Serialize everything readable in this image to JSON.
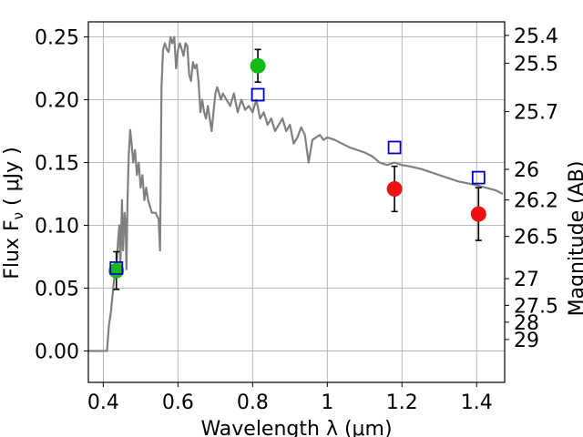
{
  "chart_data": {
    "type": "scatter",
    "xlabel": "Wavelength  λ (μm)",
    "ylabel": "Flux  F_ν  ( μJy )",
    "y2label": "Magnitude (AB)",
    "xlim": [
      0.36,
      1.475
    ],
    "ylim": [
      -0.025,
      0.262
    ],
    "grid": true,
    "x_ticks": [
      0.4,
      0.6,
      0.8,
      1.0,
      1.2,
      1.4
    ],
    "x_tick_labels": [
      "0.4",
      "0.6",
      "0.8",
      "1",
      "1.2",
      "1.4"
    ],
    "y_ticks": [
      0.0,
      0.05,
      0.1,
      0.15,
      0.2,
      0.25
    ],
    "y_tick_labels": [
      "0.00",
      "0.05",
      "0.10",
      "0.15",
      "0.20",
      "0.25"
    ],
    "y2_ticks": [
      25.4,
      25.5,
      25.7,
      26,
      26.2,
      26.5,
      27,
      27.5,
      28,
      29
    ],
    "y2_tick_labels": [
      "25.4",
      "25.5",
      "25.7",
      "26",
      "26.2",
      "26.5",
      "27",
      "27.5",
      "28",
      "29"
    ],
    "colors": {
      "model": "#808080",
      "green": "#11bb11",
      "red": "#ee1111",
      "square": "#0000cc",
      "errorbar": "#000000",
      "grid": "#b0b0b0"
    },
    "model_spectrum": {
      "x": [
        0.36,
        0.41,
        0.415,
        0.42,
        0.43,
        0.435,
        0.44,
        0.443,
        0.446,
        0.45,
        0.453,
        0.457,
        0.46,
        0.462,
        0.465,
        0.468,
        0.472,
        0.476,
        0.48,
        0.485,
        0.49,
        0.495,
        0.5,
        0.505,
        0.51,
        0.515,
        0.52,
        0.53,
        0.54,
        0.548,
        0.552,
        0.556,
        0.56,
        0.565,
        0.57,
        0.575,
        0.58,
        0.585,
        0.59,
        0.595,
        0.6,
        0.605,
        0.61,
        0.615,
        0.62,
        0.625,
        0.63,
        0.635,
        0.64,
        0.645,
        0.65,
        0.655,
        0.66,
        0.665,
        0.67,
        0.675,
        0.68,
        0.69,
        0.7,
        0.705,
        0.71,
        0.715,
        0.72,
        0.73,
        0.74,
        0.75,
        0.76,
        0.77,
        0.78,
        0.79,
        0.8,
        0.81,
        0.82,
        0.83,
        0.84,
        0.85,
        0.86,
        0.87,
        0.88,
        0.89,
        0.9,
        0.91,
        0.92,
        0.93,
        0.94,
        0.95,
        0.96,
        0.97,
        0.98,
        0.99,
        1.0,
        1.02,
        1.04,
        1.06,
        1.08,
        1.1,
        1.12,
        1.14,
        1.16,
        1.18,
        1.2,
        1.22,
        1.25,
        1.3,
        1.35,
        1.4,
        1.45,
        1.47
      ],
      "y": [
        0.0,
        0.0,
        0.02,
        0.03,
        0.06,
        0.065,
        0.09,
        0.1,
        0.07,
        0.12,
        0.08,
        0.11,
        0.1,
        0.065,
        0.12,
        0.155,
        0.176,
        0.165,
        0.15,
        0.16,
        0.14,
        0.15,
        0.13,
        0.14,
        0.12,
        0.13,
        0.12,
        0.11,
        0.11,
        0.105,
        0.08,
        0.21,
        0.24,
        0.245,
        0.24,
        0.238,
        0.25,
        0.245,
        0.25,
        0.225,
        0.24,
        0.245,
        0.24,
        0.235,
        0.245,
        0.243,
        0.22,
        0.215,
        0.23,
        0.225,
        0.228,
        0.215,
        0.19,
        0.2,
        0.19,
        0.185,
        0.195,
        0.175,
        0.205,
        0.21,
        0.205,
        0.2,
        0.205,
        0.2,
        0.195,
        0.205,
        0.19,
        0.2,
        0.192,
        0.195,
        0.19,
        0.2,
        0.185,
        0.19,
        0.18,
        0.185,
        0.175,
        0.18,
        0.185,
        0.175,
        0.18,
        0.165,
        0.17,
        0.178,
        0.172,
        0.15,
        0.168,
        0.17,
        0.172,
        0.168,
        0.17,
        0.168,
        0.165,
        0.162,
        0.16,
        0.158,
        0.155,
        0.15,
        0.148,
        0.15,
        0.148,
        0.147,
        0.145,
        0.14,
        0.135,
        0.132,
        0.128,
        0.125
      ]
    },
    "series": [
      {
        "marker": "circle",
        "color": "green",
        "points": [
          {
            "x": 0.435,
            "y": 0.064,
            "err": 0.015
          },
          {
            "x": 0.814,
            "y": 0.227,
            "err": 0.013
          }
        ]
      },
      {
        "marker": "circle",
        "color": "red",
        "points": [
          {
            "x": 1.18,
            "y": 0.129,
            "err": 0.018
          },
          {
            "x": 1.405,
            "y": 0.109,
            "err": 0.021
          }
        ]
      },
      {
        "marker": "open-square",
        "color": "square",
        "points": [
          {
            "x": 0.435,
            "y": 0.066
          },
          {
            "x": 0.814,
            "y": 0.204
          },
          {
            "x": 1.18,
            "y": 0.162
          },
          {
            "x": 1.405,
            "y": 0.138
          }
        ]
      }
    ]
  }
}
